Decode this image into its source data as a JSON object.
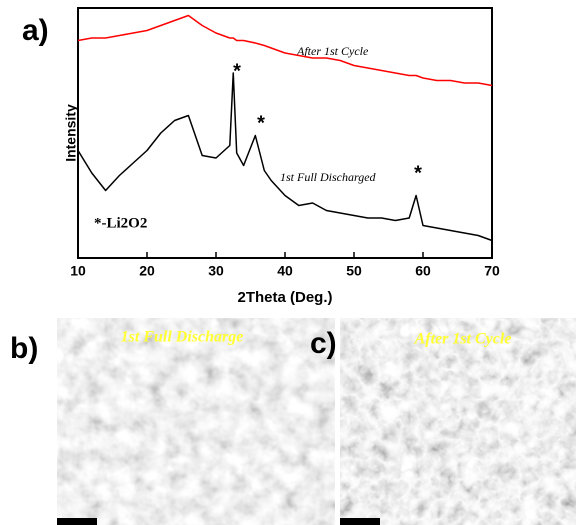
{
  "chart_data": {
    "type": "line",
    "panel_label": "a)",
    "xlabel": "2Theta (Deg.)",
    "ylabel": "Intensity",
    "x": [
      10,
      12,
      14,
      16,
      18,
      20,
      22,
      24,
      26,
      28,
      30,
      32,
      32.5,
      33,
      34,
      35.7,
      37,
      38,
      40,
      42,
      44,
      46,
      48,
      50,
      52,
      54,
      56,
      58,
      59,
      60,
      62,
      64,
      66,
      68,
      70
    ],
    "series": [
      {
        "name": "After 1st Cycle",
        "color": "#ff0000",
        "values": [
          87,
          88,
          88,
          89,
          90,
          91,
          93,
          95,
          97,
          93,
          90,
          88,
          88,
          87,
          87,
          86,
          85,
          84,
          82,
          81,
          80,
          80,
          79,
          77,
          76,
          75,
          74,
          73,
          73,
          72,
          71,
          71,
          70,
          70,
          69
        ]
      },
      {
        "name": "1st Full Discharged",
        "color": "#000000",
        "values": [
          43,
          34,
          27,
          33,
          38,
          43,
          50,
          55,
          57,
          41,
          40,
          45,
          74,
          42,
          37,
          49,
          35,
          31,
          25,
          21,
          22,
          19,
          18,
          17,
          16,
          16,
          15,
          16,
          25,
          13,
          12,
          11,
          10,
          9,
          7
        ]
      }
    ],
    "annotations": [
      "*",
      "*",
      "*",
      "*-Li2O2"
    ],
    "xlim": [
      10,
      70
    ],
    "ylim": [
      0,
      100
    ],
    "xticks": [
      10,
      20,
      30,
      40,
      50,
      60,
      70
    ]
  },
  "panels": [
    {
      "label": "b)",
      "caption": "1st Full Discharge"
    },
    {
      "label": "c)",
      "caption": "After 1st Cycle"
    }
  ]
}
